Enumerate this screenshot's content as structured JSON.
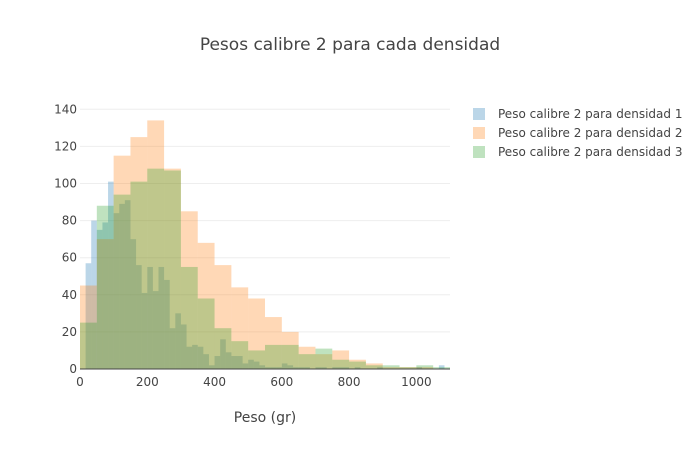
{
  "chart_data": {
    "type": "histogram",
    "title": "Pesos calibre 2 para cada densidad",
    "xlabel": "Peso (gr)",
    "ylabel": "",
    "xlim": [
      0,
      1100
    ],
    "ylim": [
      0,
      145
    ],
    "x_ticks": [
      0,
      200,
      400,
      600,
      800,
      1000
    ],
    "y_ticks": [
      0,
      20,
      40,
      60,
      80,
      100,
      120,
      140
    ],
    "grid": true,
    "legend_position": "top-right",
    "series": [
      {
        "name": "Peso calibre 2 para densidad 1",
        "color": "#1f77b4",
        "bin_width": 16.67,
        "bin_start": 0,
        "counts": [
          0,
          57,
          80,
          75,
          79,
          101,
          84,
          89,
          91,
          70,
          56,
          41,
          55,
          42,
          55,
          48,
          22,
          30,
          24,
          12,
          13,
          12,
          8,
          2,
          7,
          16,
          9,
          7,
          7,
          3,
          5,
          4,
          2,
          1,
          1,
          1,
          3,
          2,
          1,
          1,
          1,
          0,
          1,
          1,
          0,
          1,
          1,
          1,
          0,
          1,
          0,
          0,
          0,
          1,
          0,
          0,
          0,
          0,
          0,
          0,
          1,
          0,
          0,
          0,
          2,
          0
        ]
      },
      {
        "name": "Peso calibre 2 para densidad 2",
        "color": "#ff7f0e",
        "bin_width": 50,
        "bin_start": 0,
        "counts": [
          45,
          70,
          115,
          125,
          134,
          108,
          85,
          68,
          56,
          44,
          38,
          28,
          20,
          12,
          8,
          10,
          5,
          3,
          1,
          1,
          1,
          0
        ]
      },
      {
        "name": "Peso calibre 2 para densidad 3",
        "color": "#2ca02c",
        "bin_width": 50,
        "bin_start": 0,
        "counts": [
          25,
          88,
          94,
          101,
          108,
          107,
          55,
          38,
          22,
          15,
          10,
          13,
          13,
          8,
          11,
          5,
          4,
          2,
          2,
          1,
          2,
          1
        ]
      }
    ]
  }
}
